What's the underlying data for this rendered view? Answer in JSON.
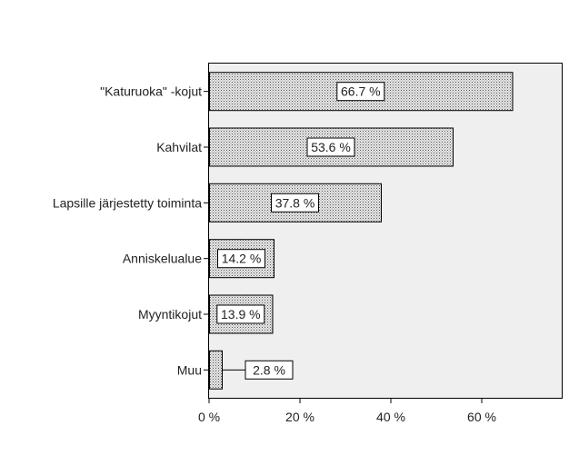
{
  "chart_data": {
    "type": "bar",
    "orientation": "horizontal",
    "categories": [
      "\"Katuruoka\" -kojut",
      "Kahvilat",
      "Lapsille järjestetty toiminta",
      "Anniskelualue",
      "Myyntikojut",
      "Muu"
    ],
    "values": [
      66.7,
      53.6,
      37.8,
      14.2,
      13.9,
      2.8
    ],
    "data_labels": [
      "66.7 %",
      "53.6 %",
      "37.8 %",
      "14.2 %",
      "13.9 %",
      "2.8 %"
    ],
    "xlim": [
      0,
      78
    ],
    "xticks": [
      0,
      20,
      40,
      60
    ],
    "xtick_labels": [
      "0 %",
      "20 %",
      "40 %",
      "60 %"
    ],
    "title": "",
    "xlabel": "",
    "ylabel": "",
    "grid": false,
    "legend": "none",
    "colors": {
      "plot_bg": "#efefef",
      "bar_fill": "#e6e6e6",
      "dots": "#555555",
      "frame": "#000000"
    }
  }
}
